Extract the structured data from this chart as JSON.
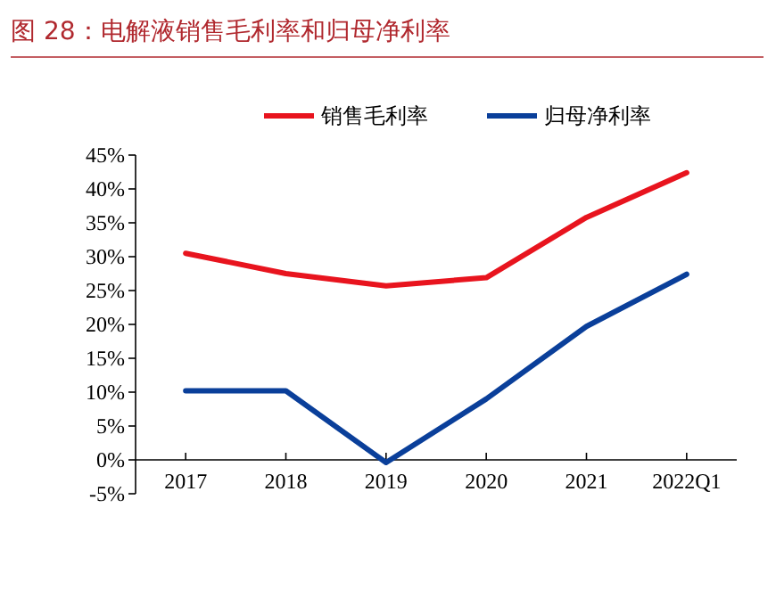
{
  "chart_data": {
    "type": "line",
    "title": "图 28：电解液销售毛利率和归母净利率",
    "categories": [
      "2017",
      "2018",
      "2019",
      "2020",
      "2021",
      "2022Q1"
    ],
    "series": [
      {
        "name": "销售毛利率",
        "color": "#e8141e",
        "values": [
          30.5,
          27.5,
          25.7,
          26.9,
          35.8,
          42.4
        ]
      },
      {
        "name": "归母净利率",
        "color": "#0a3f9a",
        "values": [
          10.2,
          10.2,
          -0.4,
          9.0,
          19.7,
          27.4
        ]
      }
    ],
    "ylim": [
      -5,
      45
    ],
    "yticks": [
      {
        "value": -5,
        "label": "-5%"
      },
      {
        "value": 0,
        "label": "0%"
      },
      {
        "value": 5,
        "label": "5%"
      },
      {
        "value": 10,
        "label": "10%"
      },
      {
        "value": 15,
        "label": "15%"
      },
      {
        "value": 20,
        "label": "20%"
      },
      {
        "value": 25,
        "label": "25%"
      },
      {
        "value": 30,
        "label": "30%"
      },
      {
        "value": 35,
        "label": "35%"
      },
      {
        "value": 40,
        "label": "40%"
      },
      {
        "value": 45,
        "label": "45%"
      }
    ],
    "grid": false,
    "legend": "top",
    "marker": "none",
    "line_style": "solid"
  }
}
